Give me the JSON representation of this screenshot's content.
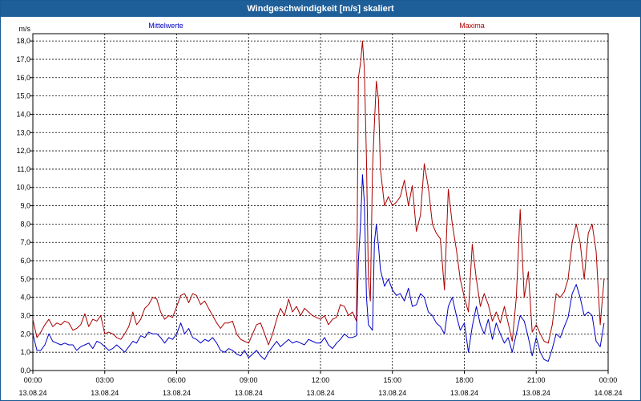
{
  "window": {
    "title": "Windgeschwindigkeit [m/s] skaliert"
  },
  "colors": {
    "titlebar": "#1f5f99",
    "mean": "#0000c8",
    "max": "#aa0000",
    "grid": "#000000"
  },
  "chart_data": {
    "type": "line",
    "title": "Windgeschwindigkeit [m/s] skaliert",
    "ylabel": "m/s",
    "ylim": [
      0,
      18.4
    ],
    "xlim": [
      0,
      24
    ],
    "y_ticks": [
      0,
      1,
      2,
      3,
      4,
      5,
      6,
      7,
      8,
      9,
      10,
      11,
      12,
      13,
      14,
      15,
      16,
      17,
      18
    ],
    "y_tick_labels": [
      "0,0",
      "1,0",
      "2,0",
      "3,0",
      "4,0",
      "5,0",
      "6,0",
      "7,0",
      "8,0",
      "9,0",
      "10,0",
      "11,0",
      "12,0",
      "13,0",
      "14,0",
      "15,0",
      "16,0",
      "17,0",
      "18,0"
    ],
    "x_ticks": [
      0,
      3,
      6,
      9,
      12,
      15,
      18,
      21,
      24
    ],
    "x_tick_times": [
      "00:00",
      "03:00",
      "06:00",
      "09:00",
      "12:00",
      "15:00",
      "18:00",
      "21:00",
      "00:00"
    ],
    "x_tick_dates": [
      "13.08.24",
      "13.08.24",
      "13.08.24",
      "13.08.24",
      "13.08.24",
      "13.08.24",
      "13.08.24",
      "13.08.24",
      "14.08.24"
    ],
    "grid": true,
    "series": [
      {
        "name": "Mittelwerte",
        "color": "#0000c8",
        "points": [
          [
            0,
            2.0
          ],
          [
            0.17,
            1.1
          ],
          [
            0.33,
            1.1
          ],
          [
            0.5,
            1.4
          ],
          [
            0.67,
            2.0
          ],
          [
            0.83,
            1.6
          ],
          [
            1.0,
            1.5
          ],
          [
            1.17,
            1.4
          ],
          [
            1.33,
            1.5
          ],
          [
            1.5,
            1.4
          ],
          [
            1.67,
            1.4
          ],
          [
            1.83,
            1.1
          ],
          [
            2.0,
            1.3
          ],
          [
            2.17,
            1.4
          ],
          [
            2.33,
            1.5
          ],
          [
            2.5,
            1.2
          ],
          [
            2.67,
            1.6
          ],
          [
            2.83,
            1.5
          ],
          [
            3.0,
            1.3
          ],
          [
            3.17,
            1.1
          ],
          [
            3.33,
            1.2
          ],
          [
            3.5,
            1.4
          ],
          [
            3.67,
            1.2
          ],
          [
            3.83,
            1.0
          ],
          [
            4.0,
            1.3
          ],
          [
            4.17,
            1.6
          ],
          [
            4.33,
            1.5
          ],
          [
            4.5,
            1.9
          ],
          [
            4.67,
            1.8
          ],
          [
            4.83,
            2.1
          ],
          [
            5.0,
            2.0
          ],
          [
            5.17,
            2.0
          ],
          [
            5.33,
            1.8
          ],
          [
            5.5,
            1.5
          ],
          [
            5.67,
            1.8
          ],
          [
            5.83,
            1.7
          ],
          [
            6.0,
            2.0
          ],
          [
            6.17,
            2.6
          ],
          [
            6.33,
            2.0
          ],
          [
            6.5,
            2.3
          ],
          [
            6.67,
            1.8
          ],
          [
            6.83,
            1.7
          ],
          [
            7.0,
            1.5
          ],
          [
            7.17,
            1.7
          ],
          [
            7.33,
            1.6
          ],
          [
            7.5,
            1.8
          ],
          [
            7.67,
            1.5
          ],
          [
            7.83,
            1.1
          ],
          [
            8.0,
            1.0
          ],
          [
            8.17,
            1.2
          ],
          [
            8.33,
            1.1
          ],
          [
            8.5,
            0.9
          ],
          [
            8.67,
            0.8
          ],
          [
            8.83,
            1.1
          ],
          [
            9.0,
            0.7
          ],
          [
            9.17,
            0.9
          ],
          [
            9.33,
            1.1
          ],
          [
            9.5,
            0.8
          ],
          [
            9.67,
            0.6
          ],
          [
            9.83,
            1.0
          ],
          [
            10.0,
            1.3
          ],
          [
            10.17,
            1.6
          ],
          [
            10.33,
            1.3
          ],
          [
            10.5,
            1.5
          ],
          [
            10.67,
            1.7
          ],
          [
            10.83,
            1.5
          ],
          [
            11.0,
            1.6
          ],
          [
            11.17,
            1.5
          ],
          [
            11.33,
            1.4
          ],
          [
            11.5,
            1.7
          ],
          [
            11.67,
            1.6
          ],
          [
            11.83,
            1.5
          ],
          [
            12.0,
            1.5
          ],
          [
            12.17,
            1.8
          ],
          [
            12.33,
            1.4
          ],
          [
            12.5,
            1.2
          ],
          [
            12.67,
            1.5
          ],
          [
            12.83,
            1.7
          ],
          [
            13.0,
            2.0
          ],
          [
            13.17,
            1.8
          ],
          [
            13.33,
            1.8
          ],
          [
            13.5,
            1.9
          ],
          [
            13.58,
            6.0
          ],
          [
            13.67,
            8.0
          ],
          [
            13.75,
            10.7
          ],
          [
            13.83,
            9.2
          ],
          [
            13.92,
            4.0
          ],
          [
            14.0,
            2.5
          ],
          [
            14.17,
            2.2
          ],
          [
            14.25,
            7.0
          ],
          [
            14.33,
            8.0
          ],
          [
            14.42,
            6.8
          ],
          [
            14.5,
            5.5
          ],
          [
            14.67,
            4.6
          ],
          [
            14.83,
            5.0
          ],
          [
            15.0,
            4.4
          ],
          [
            15.17,
            4.1
          ],
          [
            15.33,
            4.2
          ],
          [
            15.5,
            3.8
          ],
          [
            15.67,
            4.5
          ],
          [
            15.83,
            3.5
          ],
          [
            16.0,
            3.6
          ],
          [
            16.17,
            4.2
          ],
          [
            16.33,
            4.0
          ],
          [
            16.5,
            3.2
          ],
          [
            16.67,
            3.0
          ],
          [
            16.83,
            2.6
          ],
          [
            17.0,
            2.4
          ],
          [
            17.17,
            2.0
          ],
          [
            17.33,
            3.5
          ],
          [
            17.5,
            4.0
          ],
          [
            17.67,
            3.0
          ],
          [
            17.83,
            2.2
          ],
          [
            18.0,
            2.6
          ],
          [
            18.17,
            1.0
          ],
          [
            18.33,
            2.4
          ],
          [
            18.5,
            3.5
          ],
          [
            18.67,
            2.5
          ],
          [
            18.83,
            2.0
          ],
          [
            19.0,
            2.8
          ],
          [
            19.17,
            1.7
          ],
          [
            19.33,
            2.6
          ],
          [
            19.5,
            2.0
          ],
          [
            19.67,
            1.5
          ],
          [
            19.83,
            1.8
          ],
          [
            20.0,
            1.0
          ],
          [
            20.17,
            2.0
          ],
          [
            20.33,
            3.0
          ],
          [
            20.5,
            2.7
          ],
          [
            20.67,
            1.8
          ],
          [
            20.83,
            0.8
          ],
          [
            21.0,
            1.8
          ],
          [
            21.17,
            1.0
          ],
          [
            21.33,
            0.6
          ],
          [
            21.5,
            0.5
          ],
          [
            21.67,
            1.2
          ],
          [
            21.83,
            2.0
          ],
          [
            22.0,
            1.8
          ],
          [
            22.17,
            2.4
          ],
          [
            22.33,
            2.9
          ],
          [
            22.5,
            4.2
          ],
          [
            22.67,
            4.7
          ],
          [
            22.83,
            4.0
          ],
          [
            23.0,
            3.0
          ],
          [
            23.17,
            3.2
          ],
          [
            23.33,
            3.0
          ],
          [
            23.5,
            1.6
          ],
          [
            23.67,
            1.3
          ],
          [
            23.83,
            2.6
          ]
        ]
      },
      {
        "name": "Maxima",
        "color": "#aa0000",
        "points": [
          [
            0,
            2.8
          ],
          [
            0.17,
            1.8
          ],
          [
            0.33,
            2.1
          ],
          [
            0.5,
            2.5
          ],
          [
            0.67,
            2.8
          ],
          [
            0.83,
            2.4
          ],
          [
            1.0,
            2.6
          ],
          [
            1.17,
            2.5
          ],
          [
            1.33,
            2.7
          ],
          [
            1.5,
            2.6
          ],
          [
            1.67,
            2.2
          ],
          [
            1.83,
            2.3
          ],
          [
            2.0,
            2.5
          ],
          [
            2.17,
            3.1
          ],
          [
            2.33,
            2.4
          ],
          [
            2.5,
            2.8
          ],
          [
            2.67,
            2.7
          ],
          [
            2.83,
            3.0
          ],
          [
            3.0,
            2.0
          ],
          [
            3.17,
            2.1
          ],
          [
            3.33,
            2.0
          ],
          [
            3.5,
            1.8
          ],
          [
            3.67,
            1.7
          ],
          [
            3.83,
            2.0
          ],
          [
            4.0,
            2.4
          ],
          [
            4.17,
            3.2
          ],
          [
            4.33,
            2.5
          ],
          [
            4.5,
            2.8
          ],
          [
            4.67,
            3.4
          ],
          [
            4.83,
            3.6
          ],
          [
            5.0,
            4.0
          ],
          [
            5.17,
            3.9
          ],
          [
            5.33,
            3.2
          ],
          [
            5.5,
            2.8
          ],
          [
            5.67,
            3.0
          ],
          [
            5.83,
            2.9
          ],
          [
            6.0,
            3.5
          ],
          [
            6.17,
            4.1
          ],
          [
            6.33,
            4.2
          ],
          [
            6.5,
            3.7
          ],
          [
            6.67,
            4.2
          ],
          [
            6.83,
            4.1
          ],
          [
            7.0,
            3.6
          ],
          [
            7.17,
            3.8
          ],
          [
            7.33,
            3.4
          ],
          [
            7.5,
            3.0
          ],
          [
            7.67,
            2.6
          ],
          [
            7.83,
            2.3
          ],
          [
            8.0,
            2.6
          ],
          [
            8.17,
            2.6
          ],
          [
            8.33,
            2.7
          ],
          [
            8.5,
            2.0
          ],
          [
            8.67,
            1.7
          ],
          [
            8.83,
            1.6
          ],
          [
            9.0,
            1.5
          ],
          [
            9.17,
            2.0
          ],
          [
            9.33,
            2.5
          ],
          [
            9.5,
            2.6
          ],
          [
            9.67,
            2.0
          ],
          [
            9.83,
            1.4
          ],
          [
            10.0,
            2.0
          ],
          [
            10.17,
            2.8
          ],
          [
            10.33,
            3.4
          ],
          [
            10.5,
            3.0
          ],
          [
            10.67,
            3.9
          ],
          [
            10.83,
            3.2
          ],
          [
            11.0,
            3.5
          ],
          [
            11.17,
            3.0
          ],
          [
            11.33,
            3.4
          ],
          [
            11.5,
            3.2
          ],
          [
            11.67,
            3.0
          ],
          [
            11.83,
            2.9
          ],
          [
            12.0,
            2.8
          ],
          [
            12.17,
            3.0
          ],
          [
            12.33,
            2.5
          ],
          [
            12.5,
            2.8
          ],
          [
            12.67,
            2.9
          ],
          [
            12.83,
            3.6
          ],
          [
            13.0,
            3.5
          ],
          [
            13.17,
            3.0
          ],
          [
            13.33,
            3.2
          ],
          [
            13.5,
            2.7
          ],
          [
            13.58,
            16.0
          ],
          [
            13.67,
            16.8
          ],
          [
            13.75,
            18.0
          ],
          [
            13.83,
            16.5
          ],
          [
            13.92,
            11.5
          ],
          [
            14.0,
            5.0
          ],
          [
            14.08,
            3.8
          ],
          [
            14.17,
            11.0
          ],
          [
            14.25,
            13.5
          ],
          [
            14.33,
            15.8
          ],
          [
            14.42,
            14.8
          ],
          [
            14.5,
            11.0
          ],
          [
            14.67,
            9.0
          ],
          [
            14.83,
            9.5
          ],
          [
            15.0,
            9.0
          ],
          [
            15.17,
            9.2
          ],
          [
            15.33,
            9.5
          ],
          [
            15.5,
            10.4
          ],
          [
            15.67,
            9.0
          ],
          [
            15.83,
            10.1
          ],
          [
            16.0,
            7.6
          ],
          [
            16.17,
            8.5
          ],
          [
            16.33,
            11.3
          ],
          [
            16.5,
            10.0
          ],
          [
            16.67,
            8.0
          ],
          [
            16.83,
            7.5
          ],
          [
            17.0,
            7.2
          ],
          [
            17.17,
            4.4
          ],
          [
            17.33,
            9.9
          ],
          [
            17.5,
            8.0
          ],
          [
            17.67,
            6.6
          ],
          [
            17.83,
            5.0
          ],
          [
            18.0,
            4.0
          ],
          [
            18.17,
            3.2
          ],
          [
            18.33,
            6.9
          ],
          [
            18.5,
            5.0
          ],
          [
            18.67,
            3.5
          ],
          [
            18.83,
            4.2
          ],
          [
            19.0,
            3.6
          ],
          [
            19.17,
            2.7
          ],
          [
            19.33,
            3.2
          ],
          [
            19.5,
            2.6
          ],
          [
            19.67,
            3.5
          ],
          [
            19.83,
            2.6
          ],
          [
            20.0,
            1.6
          ],
          [
            20.17,
            4.0
          ],
          [
            20.33,
            8.8
          ],
          [
            20.5,
            4.0
          ],
          [
            20.67,
            5.4
          ],
          [
            20.83,
            2.1
          ],
          [
            21.0,
            2.5
          ],
          [
            21.17,
            2.0
          ],
          [
            21.33,
            1.6
          ],
          [
            21.5,
            1.5
          ],
          [
            21.67,
            2.5
          ],
          [
            21.83,
            4.2
          ],
          [
            22.0,
            4.0
          ],
          [
            22.17,
            4.3
          ],
          [
            22.33,
            5.0
          ],
          [
            22.5,
            7.0
          ],
          [
            22.67,
            8.0
          ],
          [
            22.83,
            7.0
          ],
          [
            23.0,
            5.0
          ],
          [
            23.17,
            7.5
          ],
          [
            23.33,
            8.0
          ],
          [
            23.5,
            6.5
          ],
          [
            23.67,
            2.5
          ],
          [
            23.83,
            5.0
          ]
        ]
      }
    ]
  }
}
